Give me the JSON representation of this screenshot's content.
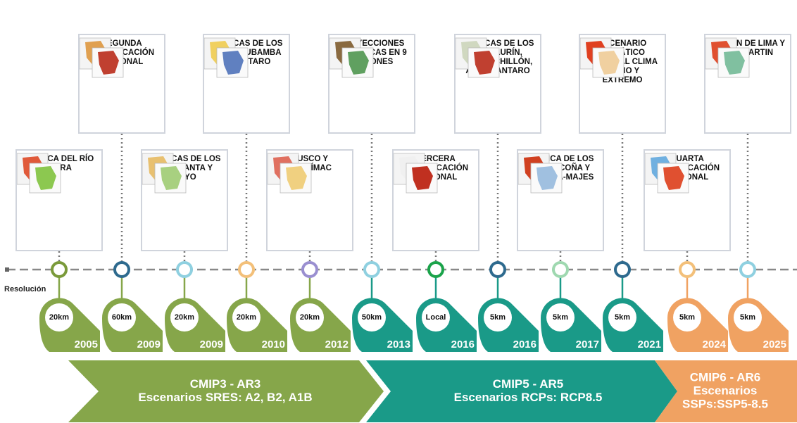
{
  "resolution_label": "Resolución",
  "items": [
    {
      "label": "CUENCA DEL RÍO PIURA",
      "resolution": "20km",
      "year": "2005"
    },
    {
      "label": "SEGUNDA COMUNICACIÓN NACIONAL",
      "resolution": "60km",
      "year": "2009"
    },
    {
      "label": "CUENCAS DE LOS RÍOS SANTA Y MAYO",
      "resolution": "20km",
      "year": "2009"
    },
    {
      "label": "CUENCAS DE LOS RÍOS URUBAMBA Y MANTARO",
      "resolution": "20km",
      "year": "2010"
    },
    {
      "label": "CUSCO Y APURÍMAC",
      "resolution": "20km",
      "year": "2012"
    },
    {
      "label": "PROYECCIONES CLIMÁTICAS EN 9 REGIONES",
      "resolution": "50km",
      "year": "2013"
    },
    {
      "label": "TERCERA COMUNICACIÓN NACIONAL",
      "resolution": "Local",
      "year": "2016"
    },
    {
      "label": "CUENCAS DE LOS RÍOS LURÍN, RÍMAC, CHILLÓN, ALTO MANTARO",
      "resolution": "5km",
      "year": "2016"
    },
    {
      "label": "CUENCA DE LOS RÍOS OCOÑA Y CAMANÁ-MAJES",
      "resolution": "5km",
      "year": "2017"
    },
    {
      "label": "ESCENARIO CLIMÁTICO NACIONAL CLIMA MEDIO Y EXTREMO",
      "resolution": "5km",
      "year": "2021"
    },
    {
      "label": "CUARTA COMUNICACIÓN NACIONAL",
      "resolution": "5km",
      "year": "2024"
    },
    {
      "label": "REGIÓN DE LIMA Y SAN MARTIN",
      "resolution": "5km",
      "year": "2025"
    }
  ],
  "eras": [
    {
      "title": "CMIP3 -  AR3",
      "lines": [
        "Escenarios SRES: A2, B2, A1B"
      ]
    },
    {
      "title": "CMIP5 - AR5",
      "lines": [
        "Escenarios RCPs: RCP8.5"
      ]
    },
    {
      "title": "CMIP6 - AR6",
      "lines": [
        "Escenarios",
        "SSPs:SSP5-8.5"
      ]
    }
  ]
}
